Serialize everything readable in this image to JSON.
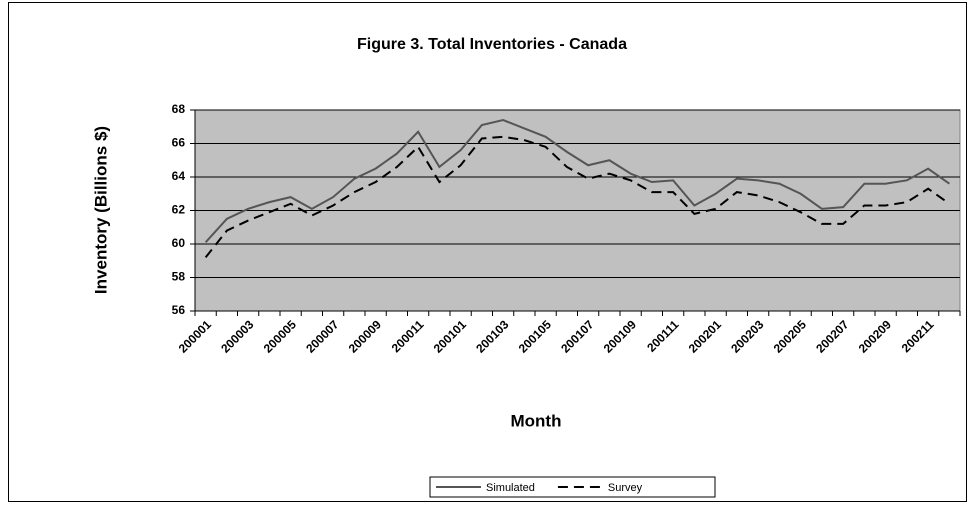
{
  "chart_data": {
    "type": "line",
    "title": "Figure 3. Total Inventories - Canada",
    "xlabel": "Month",
    "ylabel": "Inventory (Billions $)",
    "categories": [
      "200001",
      null,
      "200003",
      null,
      "200005",
      null,
      "200007",
      null,
      "200009",
      null,
      "200011",
      null,
      "200101",
      null,
      "200103",
      null,
      "200105",
      null,
      "200107",
      null,
      "200109",
      null,
      "200111",
      null,
      "200201",
      null,
      "200203",
      null,
      "200205",
      null,
      "200207",
      null,
      "200209",
      null,
      "200211",
      null
    ],
    "series": [
      {
        "name": "Simulated",
        "color": "#555555",
        "line_style": "solid",
        "values": [
          60.1,
          61.5,
          62.1,
          62.5,
          62.8,
          62.1,
          62.8,
          63.9,
          64.5,
          65.4,
          66.7,
          64.6,
          65.6,
          67.1,
          67.4,
          66.9,
          66.4,
          65.5,
          64.7,
          65.0,
          64.2,
          63.7,
          63.8,
          62.3,
          63.0,
          63.9,
          63.8,
          63.6,
          63.0,
          62.1,
          62.2,
          63.6,
          63.6,
          63.8,
          64.5,
          63.6
        ]
      },
      {
        "name": "Survey",
        "color": "#000000",
        "line_style": "dashed",
        "values": [
          59.2,
          60.8,
          61.4,
          61.9,
          62.4,
          61.7,
          62.3,
          63.1,
          63.7,
          64.6,
          65.8,
          63.7,
          64.7,
          66.3,
          66.4,
          66.2,
          65.8,
          64.6,
          63.9,
          64.2,
          63.8,
          63.1,
          63.1,
          61.8,
          62.1,
          63.1,
          62.9,
          62.5,
          61.9,
          61.2,
          61.2,
          62.3,
          62.3,
          62.5,
          63.3,
          62.4
        ]
      }
    ],
    "ylim": [
      56,
      68
    ],
    "yticks": [
      56,
      58,
      60,
      62,
      64,
      66,
      68
    ],
    "grid": true,
    "plot_background": "#c0c0c0",
    "legend": "bottom"
  }
}
